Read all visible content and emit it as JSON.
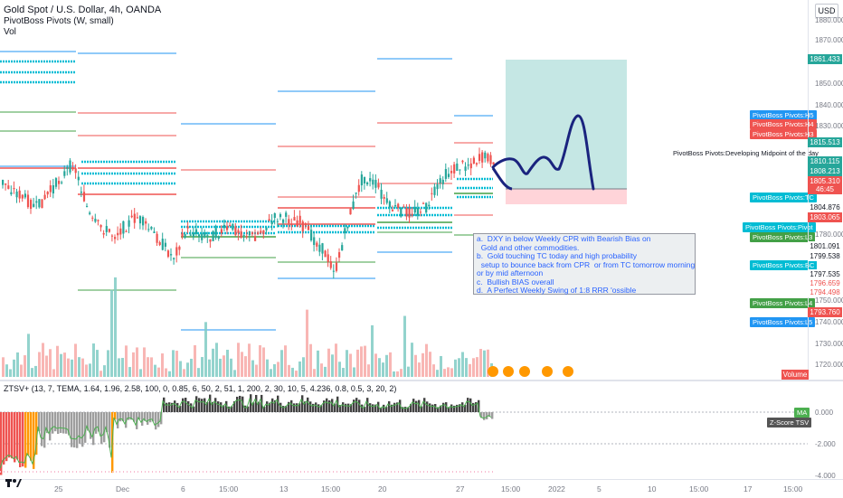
{
  "header": {
    "symbol_title": "Gold Spot / U.S. Dollar, 4h, OANDA",
    "indicator_1": "PivotBoss Pivots (W, small)",
    "indicator_2": "Vol",
    "currency_button": "USD"
  },
  "annotation": {
    "lines": [
      "a.  DXY in below Weekly CPR with Bearish Bias on",
      "  Gold and other commodities.",
      "b.  Gold touching TC today and high probability",
      "  setup to bounce back from CPR  or from TC tomorrow morning",
      "or by mid afternoon",
      "c.  Bullish BIAS overall",
      "d.  A Perfect Weekly Swing of 1:8 RRR 'ossible"
    ]
  },
  "developing_label": "PivotBoss Pivots:Developing Midpoint of the day",
  "pivot_labels": {
    "h5": "PivotBoss Pivots:H5",
    "h4": "PivotBoss Pivots:H4",
    "h3": "PivotBoss Pivots:H3",
    "tc": "PivotBoss Pivots:TC",
    "pivot": "PivotBoss Pivots:Pivot",
    "l3": "PivotBoss Pivots:L3",
    "bc": "PivotBoss Pivots:BC",
    "l4": "PivotBoss Pivots:L4",
    "l5": "PivotBoss Pivots:L5"
  },
  "price_axis": {
    "ticks": [
      "1880.000",
      "1870.000",
      "1860.000",
      "1850.000",
      "1840.000",
      "1830.000",
      "1820.000",
      "1790.000",
      "1780.000",
      "1770.000",
      "1760.000",
      "1750.000",
      "1740.000",
      "1730.000",
      "1720.000"
    ],
    "badges": {
      "b1861": "1861.433",
      "b1815": "1815.513",
      "b1810": "1810.115",
      "b1808": "1808.213",
      "b1805": "1805.310",
      "bcount": "46:45",
      "b1804": "1804.876",
      "b1803": "1803.065",
      "b1801": "1801.091",
      "b1799": "1799.538",
      "b1797": "1797.535",
      "b1796": "1796.659",
      "b1794": "1794.498",
      "b1793": "1793.760"
    },
    "volume_label": "Volume"
  },
  "oscillator": {
    "title": "ZTSV+ (13, 7, TEMA, 1.64, 1.96, 2.58, 100, 0, 0.85, 6, 50, 2, 51, 1, 200, 2, 30, 10, 5, 4.236, 0.8, 0.5, 3, 20, 2)",
    "ticks": [
      "0.000",
      "-2.000",
      "-4.000"
    ],
    "ma_label": "MA",
    "zscore_label": "Z-Score TSV"
  },
  "time_axis": {
    "ticks": [
      "25",
      "Dec",
      "6",
      "15:00",
      "13",
      "15:00",
      "20",
      "27",
      "15:00",
      "2022",
      "5",
      "10",
      "15:00",
      "17",
      "15:00"
    ]
  },
  "colors": {
    "up": "#26a69a",
    "down": "#ef5350",
    "pivot_cyan": "#00bcd4",
    "h_red": "#ef5350",
    "l_green": "#43a047",
    "l5_blue": "#2196f3",
    "forecast_line": "#1a237e",
    "reward_zone": "#b2dfdb",
    "risk_zone": "#ffcdd2"
  }
}
